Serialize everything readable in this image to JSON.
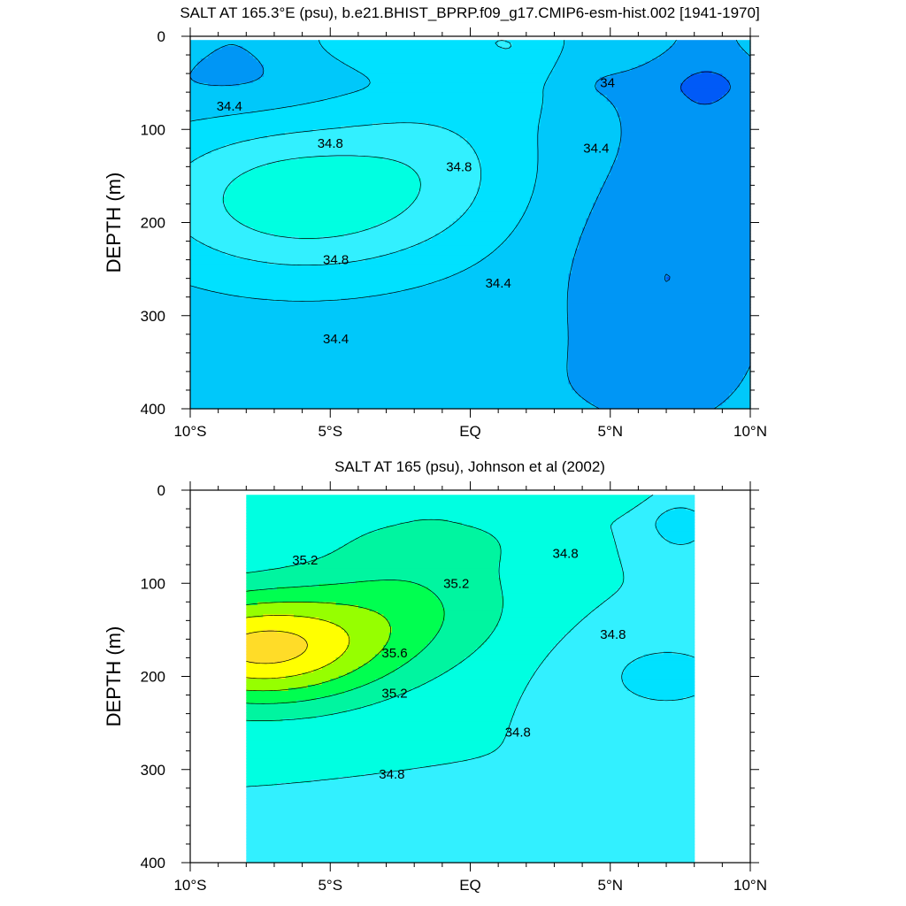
{
  "chart_data": [
    {
      "type": "contour",
      "title": "SALT AT 165.3°E (psu), b.e21.BHIST_BPRP.f09_g17.CMIP6-esm-hist.002 [1941-1970]",
      "ylabel": "DEPTH (m)",
      "xlim": [
        -10,
        10
      ],
      "ylim": [
        400,
        0
      ],
      "x_ticks": [
        {
          "value": -10,
          "label": "10°S"
        },
        {
          "value": -5,
          "label": "5°S"
        },
        {
          "value": 0,
          "label": "EQ"
        },
        {
          "value": 5,
          "label": "5°N"
        },
        {
          "value": 10,
          "label": "10°N"
        }
      ],
      "y_ticks": [
        0,
        100,
        200,
        300,
        400
      ],
      "contour_interval": 0.2,
      "levels": [
        {
          "value": 33.8,
          "color": "#005af7"
        },
        {
          "value": 34.0,
          "color": "#0096f5"
        },
        {
          "value": 34.2,
          "color": "#00c8fa"
        },
        {
          "value": 34.4,
          "color": "#00e1ff"
        },
        {
          "value": 34.6,
          "color": "#32f0ff"
        },
        {
          "value": 34.8,
          "color": "#00ffe1"
        },
        {
          "value": 35.0,
          "color": "#00f5a0"
        },
        {
          "value": 35.2,
          "color": "#00ff50"
        }
      ],
      "contour_labels": [
        {
          "text": "34.4",
          "lon": -8.6,
          "depth": 75
        },
        {
          "text": "34.8",
          "lon": -5.0,
          "depth": 115
        },
        {
          "text": "34.8",
          "lon": -0.4,
          "depth": 140
        },
        {
          "text": "34.8",
          "lon": -4.8,
          "depth": 240
        },
        {
          "text": "34.4",
          "lon": -4.8,
          "depth": 325
        },
        {
          "text": "34.4",
          "lon": 1.0,
          "depth": 265
        },
        {
          "text": "34.4",
          "lon": 4.5,
          "depth": 120
        },
        {
          "text": "34",
          "lon": 4.9,
          "depth": 50
        }
      ]
    },
    {
      "type": "contour",
      "title": "SALT AT 165 (psu), Johnson et al (2002)",
      "ylabel": "DEPTH (m)",
      "xlim": [
        -10,
        10
      ],
      "ylim": [
        400,
        0
      ],
      "data_lon_range": [
        -8,
        8
      ],
      "x_ticks": [
        {
          "value": -10,
          "label": "10°S"
        },
        {
          "value": -5,
          "label": "5°S"
        },
        {
          "value": 0,
          "label": "EQ"
        },
        {
          "value": 5,
          "label": "5°N"
        },
        {
          "value": 10,
          "label": "10°N"
        }
      ],
      "y_ticks": [
        0,
        100,
        200,
        300,
        400
      ],
      "contour_interval": 0.2,
      "levels": [
        {
          "value": 34.4,
          "color": "#00e1ff"
        },
        {
          "value": 34.6,
          "color": "#32f0ff"
        },
        {
          "value": 34.8,
          "color": "#00ffe1"
        },
        {
          "value": 35.0,
          "color": "#00f5a0"
        },
        {
          "value": 35.2,
          "color": "#00ff50"
        },
        {
          "value": 35.4,
          "color": "#96ff00"
        },
        {
          "value": 35.6,
          "color": "#ffff00"
        },
        {
          "value": 35.8,
          "color": "#ffdc28"
        }
      ],
      "contour_labels": [
        {
          "text": "35.2",
          "lon": -5.9,
          "depth": 75
        },
        {
          "text": "35.2",
          "lon": -0.5,
          "depth": 100
        },
        {
          "text": "34.8",
          "lon": 3.4,
          "depth": 68
        },
        {
          "text": "35.6",
          "lon": -2.7,
          "depth": 175
        },
        {
          "text": "35.2",
          "lon": -2.7,
          "depth": 218
        },
        {
          "text": "34.8",
          "lon": 5.1,
          "depth": 155
        },
        {
          "text": "34.8",
          "lon": 1.7,
          "depth": 260
        },
        {
          "text": "34.8",
          "lon": -2.8,
          "depth": 305
        }
      ]
    }
  ]
}
